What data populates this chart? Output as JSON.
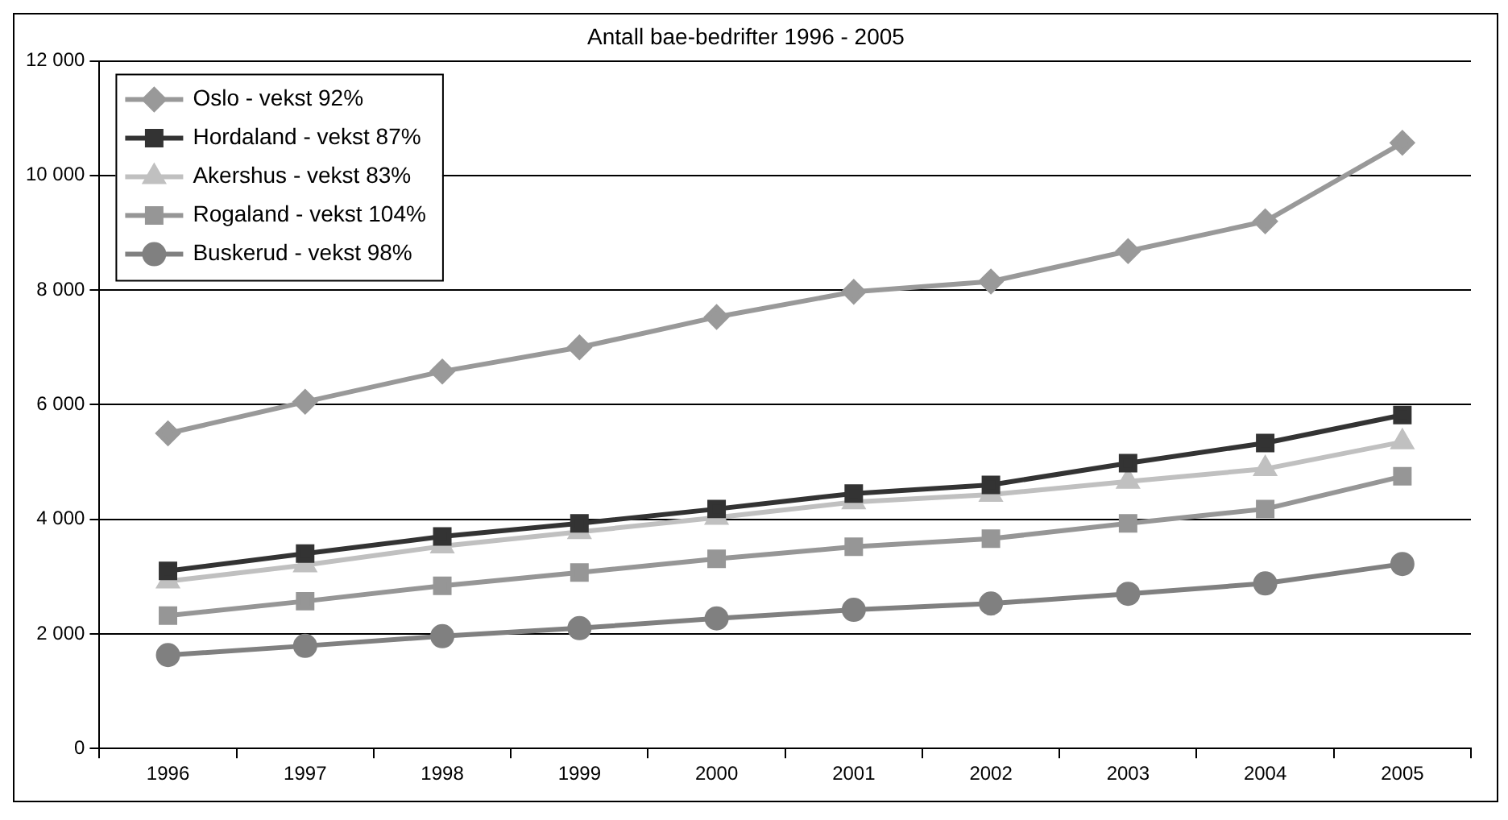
{
  "chart_data": {
    "type": "line",
    "title": "Antall bae-bedrifter 1996 - 2005",
    "categories": [
      "1996",
      "1997",
      "1998",
      "1999",
      "2000",
      "2001",
      "2002",
      "2003",
      "2004",
      "2005"
    ],
    "series": [
      {
        "name": "Oslo - vekst 92%",
        "color": "#999999",
        "marker": "diamond",
        "values": [
          5500,
          6050,
          6580,
          7000,
          7530,
          7970,
          8150,
          8680,
          9200,
          10570
        ]
      },
      {
        "name": "Hordaland - vekst 87%",
        "color": "#333333",
        "marker": "square",
        "values": [
          3100,
          3400,
          3700,
          3930,
          4180,
          4450,
          4600,
          4980,
          5330,
          5820
        ]
      },
      {
        "name": "Akershus - vekst 83%",
        "color": "#c0c0c0",
        "marker": "triangle",
        "values": [
          2920,
          3200,
          3530,
          3780,
          4030,
          4300,
          4430,
          4660,
          4880,
          5350
        ]
      },
      {
        "name": "Rogaland - vekst 104%",
        "color": "#969696",
        "marker": "square",
        "values": [
          2320,
          2570,
          2840,
          3070,
          3310,
          3520,
          3660,
          3930,
          4180,
          4750
        ]
      },
      {
        "name": "Buskerud - vekst 98%",
        "color": "#808080",
        "marker": "circle",
        "values": [
          1630,
          1790,
          1960,
          2100,
          2270,
          2420,
          2530,
          2700,
          2880,
          3220
        ]
      }
    ],
    "ylim": [
      0,
      12000
    ],
    "yticks": [
      {
        "value": 0,
        "label": "0"
      },
      {
        "value": 2000,
        "label": "2 000"
      },
      {
        "value": 4000,
        "label": "4 000"
      },
      {
        "value": 6000,
        "label": "6 000"
      },
      {
        "value": 8000,
        "label": "8 000"
      },
      {
        "value": 10000,
        "label": "10 000"
      },
      {
        "value": 12000,
        "label": "12 000"
      }
    ],
    "grid": "y",
    "legend": "top left",
    "line_style": "solid"
  }
}
